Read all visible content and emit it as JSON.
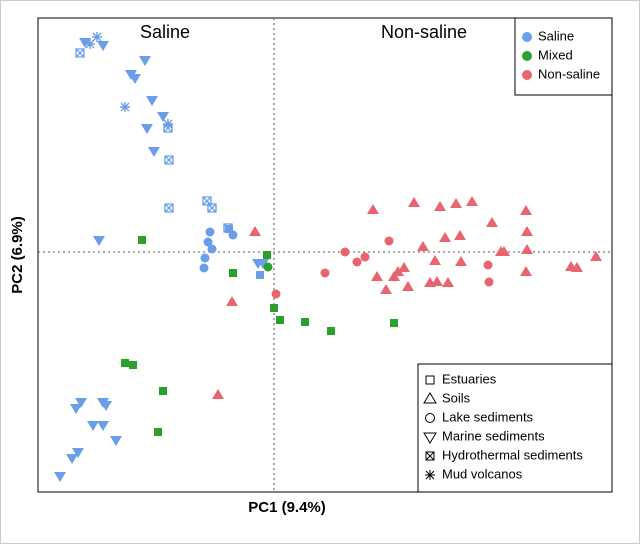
{
  "chart_data": {
    "type": "scatter",
    "x_label": "PC1 (9.4%)",
    "y_label": "PC2 (6.9%)",
    "annotations": [
      "Saline",
      "Non-saline"
    ],
    "xlim": [
      -2.36,
      3.38
    ],
    "ylim": [
      -2.4,
      2.34
    ],
    "zero_lines": true,
    "legend": "top-right",
    "shape_legend_position": "bottom-right",
    "shape_legend": [
      {
        "label": "Estuaries",
        "marker": "square"
      },
      {
        "label": "Soils",
        "marker": "triangle"
      },
      {
        "label": "Lake sediments",
        "marker": "circle"
      },
      {
        "label": "Marine sediments",
        "marker": "triangle-down"
      },
      {
        "label": "Hydrothermal sediments",
        "marker": "box-x"
      },
      {
        "label": "Mud volcanos",
        "marker": "asterisk"
      }
    ],
    "series": [
      {
        "name": "Saline",
        "color": "#6a9ee8",
        "markers": [
          "asterisk",
          "asterisk",
          "asterisk",
          "asterisk",
          "box-x",
          "box-x",
          "box-x",
          "box-x",
          "box-x",
          "box-x",
          "box-x",
          "triangle-down",
          "triangle-down",
          "triangle-down",
          "triangle-down",
          "triangle-down",
          "triangle-down",
          "triangle-down",
          "triangle-down",
          "triangle-down",
          "triangle-down",
          "triangle-down",
          "triangle-down",
          "triangle-down",
          "triangle-down",
          "triangle-down",
          "triangle-down",
          "triangle-down",
          "triangle-down",
          "triangle-down",
          "triangle-down",
          "triangle-down",
          "triangle-down",
          "circle",
          "circle",
          "circle",
          "circle",
          "circle",
          "circle",
          "square",
          "square"
        ],
        "x": [
          -1.77,
          -1.84,
          -1.49,
          -1.06,
          -1.94,
          -1.06,
          -1.05,
          -1.05,
          -0.67,
          -0.62,
          -0.46,
          -1.89,
          -1.71,
          -1.29,
          -1.43,
          -1.39,
          -1.22,
          -1.11,
          -1.27,
          -1.2,
          -1.75,
          -0.16,
          -0.11,
          -1.93,
          -1.98,
          -1.71,
          -1.68,
          -1.81,
          -1.71,
          -1.58,
          -1.96,
          -2.02,
          -2.14,
          -0.64,
          -0.66,
          -0.62,
          -0.69,
          -0.7,
          -0.41,
          -0.14,
          -0.45
        ],
        "y": [
          2.15,
          2.08,
          1.45,
          1.28,
          1.99,
          1.24,
          0.92,
          0.44,
          0.51,
          0.44,
          0.24,
          2.1,
          2.07,
          1.92,
          1.78,
          1.74,
          1.52,
          1.36,
          1.24,
          1.01,
          0.12,
          -0.11,
          -0.11,
          -1.5,
          -1.56,
          -1.5,
          -1.53,
          -1.73,
          -1.73,
          -1.88,
          -2.0,
          -2.06,
          -2.24,
          0.2,
          0.1,
          0.03,
          -0.06,
          -0.16,
          0.17,
          -0.23,
          0.23
        ]
      },
      {
        "name": "Mixed",
        "color": "#2ca02c",
        "markers": [
          "square",
          "square",
          "square",
          "square",
          "square",
          "square",
          "square",
          "square",
          "square",
          "square",
          "square",
          "square",
          "circle"
        ],
        "x": [
          -1.32,
          -0.07,
          -0.41,
          0,
          0.06,
          0.31,
          0.57,
          1.2,
          -1.49,
          -1.41,
          -1.11,
          -1.16,
          -0.06
        ],
        "y": [
          0.12,
          -0.03,
          -0.21,
          -0.56,
          -0.68,
          -0.7,
          -0.79,
          -0.71,
          -1.11,
          -1.13,
          -1.39,
          -1.8,
          -0.15
        ]
      },
      {
        "name": "Non-saline",
        "color": "#e8646e",
        "markers": [
          "triangle",
          "triangle",
          "triangle",
          "triangle",
          "triangle",
          "triangle",
          "triangle",
          "triangle",
          "triangle",
          "triangle",
          "triangle",
          "triangle",
          "triangle",
          "triangle",
          "triangle",
          "triangle",
          "triangle",
          "triangle",
          "triangle",
          "triangle",
          "triangle",
          "triangle",
          "triangle",
          "triangle",
          "triangle",
          "triangle",
          "triangle",
          "triangle",
          "triangle",
          "triangle",
          "triangle",
          "triangle",
          "circle",
          "circle",
          "circle",
          "circle",
          "circle",
          "circle",
          "circle",
          "circle"
        ],
        "x": [
          0.99,
          1.4,
          1.66,
          1.82,
          1.98,
          2.52,
          -0.19,
          -0.42,
          -0.56,
          2.18,
          1.86,
          1.71,
          1.49,
          2.27,
          2.53,
          2.53,
          1.61,
          1.87,
          1.3,
          1.03,
          1.2,
          1.24,
          1.12,
          1.34,
          1.56,
          1.63,
          1.74,
          2.97,
          3.03,
          3.22,
          2.52,
          2.3,
          1.15,
          0.71,
          0.83,
          0.51,
          0.02,
          2.14,
          2.15,
          0.91
        ],
        "y": [
          0.42,
          0.49,
          0.45,
          0.48,
          0.5,
          0.41,
          0.2,
          -0.5,
          -1.43,
          0.29,
          0.16,
          0.14,
          0.05,
          0,
          0.2,
          0.02,
          -0.09,
          -0.1,
          -0.16,
          -0.25,
          -0.25,
          -0.2,
          -0.38,
          -0.35,
          -0.31,
          -0.3,
          -0.31,
          -0.15,
          -0.16,
          -0.05,
          -0.2,
          0,
          0.11,
          0,
          -0.1,
          -0.21,
          -0.42,
          -0.13,
          -0.3,
          -0.05
        ]
      }
    ]
  }
}
